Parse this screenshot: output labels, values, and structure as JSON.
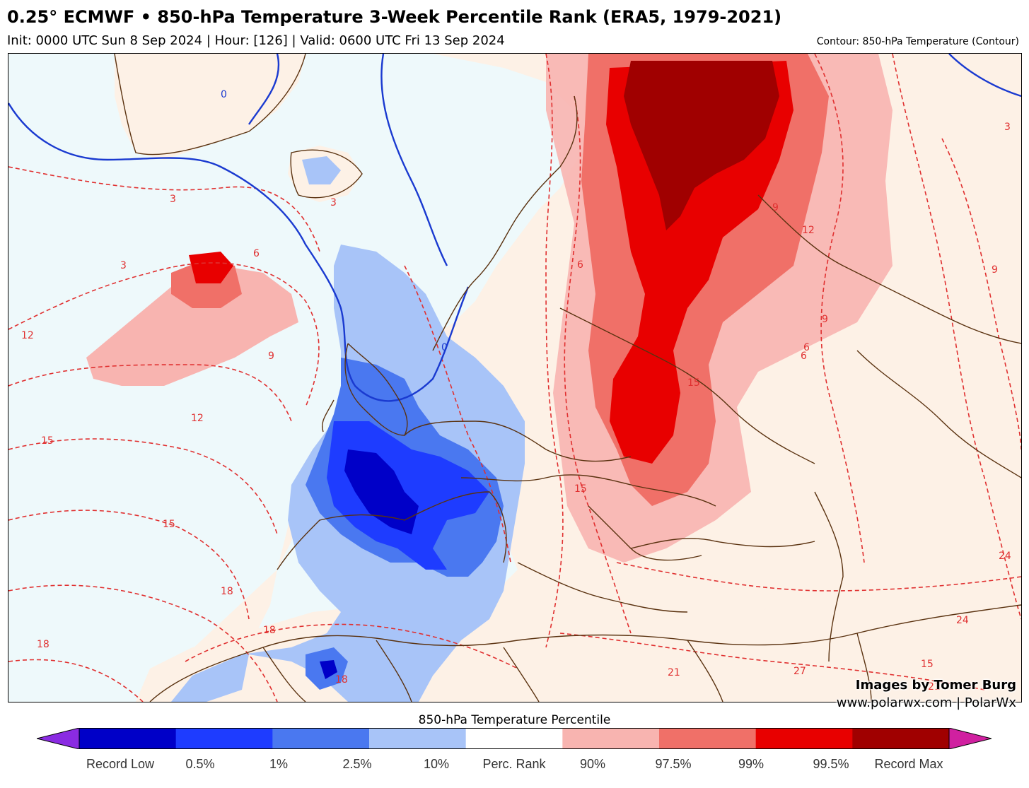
{
  "header": {
    "title": "0.25° ECMWF • 850-hPa Temperature 3-Week Percentile Rank (ERA5, 1979-2021)",
    "subtitle": "Init: 0000 UTC Sun 8 Sep 2024 | Hour: [126] | Valid: 0600 UTC Fri 13 Sep 2024",
    "contour_note": "Contour: 850-hPa Temperature (Contour)"
  },
  "credits": {
    "line1": "Images by Tomer Burg",
    "line2": "www.polarwx.com | PolarWx"
  },
  "legend": {
    "title": "850-hPa Temperature Percentile",
    "labels": [
      "Record Low",
      "0.5%",
      "1%",
      "2.5%",
      "10%",
      "Perc. Rank",
      "90%",
      "97.5%",
      "99%",
      "99.5%",
      "Record Max"
    ],
    "colors": [
      "#8a2be2",
      "#0000c8",
      "#1e3cff",
      "#4a78f0",
      "#a8c4f8",
      "#ffffff",
      "#f8b4b0",
      "#f07068",
      "#e80000",
      "#a00000",
      "#d020a0"
    ]
  },
  "map": {
    "colors": {
      "ocean_neutral": "#eef9fb",
      "land_neutral": "#fdf1e6",
      "light_red": "#f8b4b0",
      "mid_red": "#f07068",
      "red": "#e80000",
      "dark_red": "#a00000",
      "light_blue": "#a8c4f8",
      "mid_blue": "#4a78f0",
      "blue": "#1e3cff",
      "dark_blue": "#0000c8",
      "contour_red": "#e03030",
      "contour_blue": "#1a3ad0",
      "border": "#5a3210"
    },
    "contour_labels": [
      "3",
      "3",
      "6",
      "6",
      "9",
      "9",
      "12",
      "12",
      "15",
      "15",
      "15",
      "18",
      "18",
      "18",
      "21",
      "24",
      "24",
      "27",
      "0",
      "0",
      "3",
      "6",
      "9",
      "12",
      "15",
      "6",
      "3",
      "9",
      "15",
      "18",
      "21"
    ]
  }
}
